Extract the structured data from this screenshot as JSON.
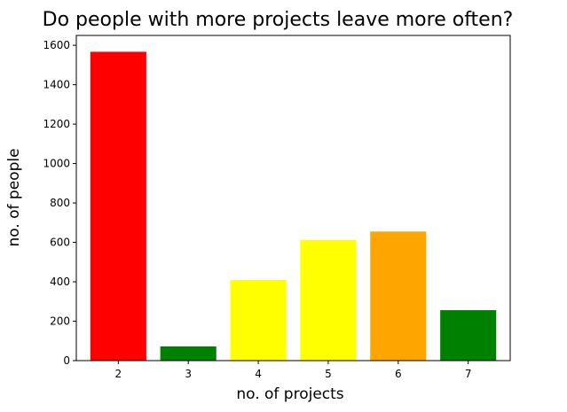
{
  "chart_data": {
    "type": "bar",
    "title": "Do people with more projects leave more often?",
    "xlabel": "no. of projects",
    "ylabel": "no. of people",
    "categories": [
      "2",
      "3",
      "4",
      "5",
      "6",
      "7"
    ],
    "values": [
      1567,
      72,
      409,
      612,
      655,
      256
    ],
    "colors": [
      "#ff0000",
      "#008000",
      "#ffff00",
      "#ffff00",
      "#ffa500",
      "#008000"
    ],
    "ylim": [
      0,
      1650
    ],
    "yticks": [
      0,
      200,
      400,
      600,
      800,
      1000,
      1200,
      1400,
      1600
    ],
    "grid": false,
    "legend": "none"
  }
}
